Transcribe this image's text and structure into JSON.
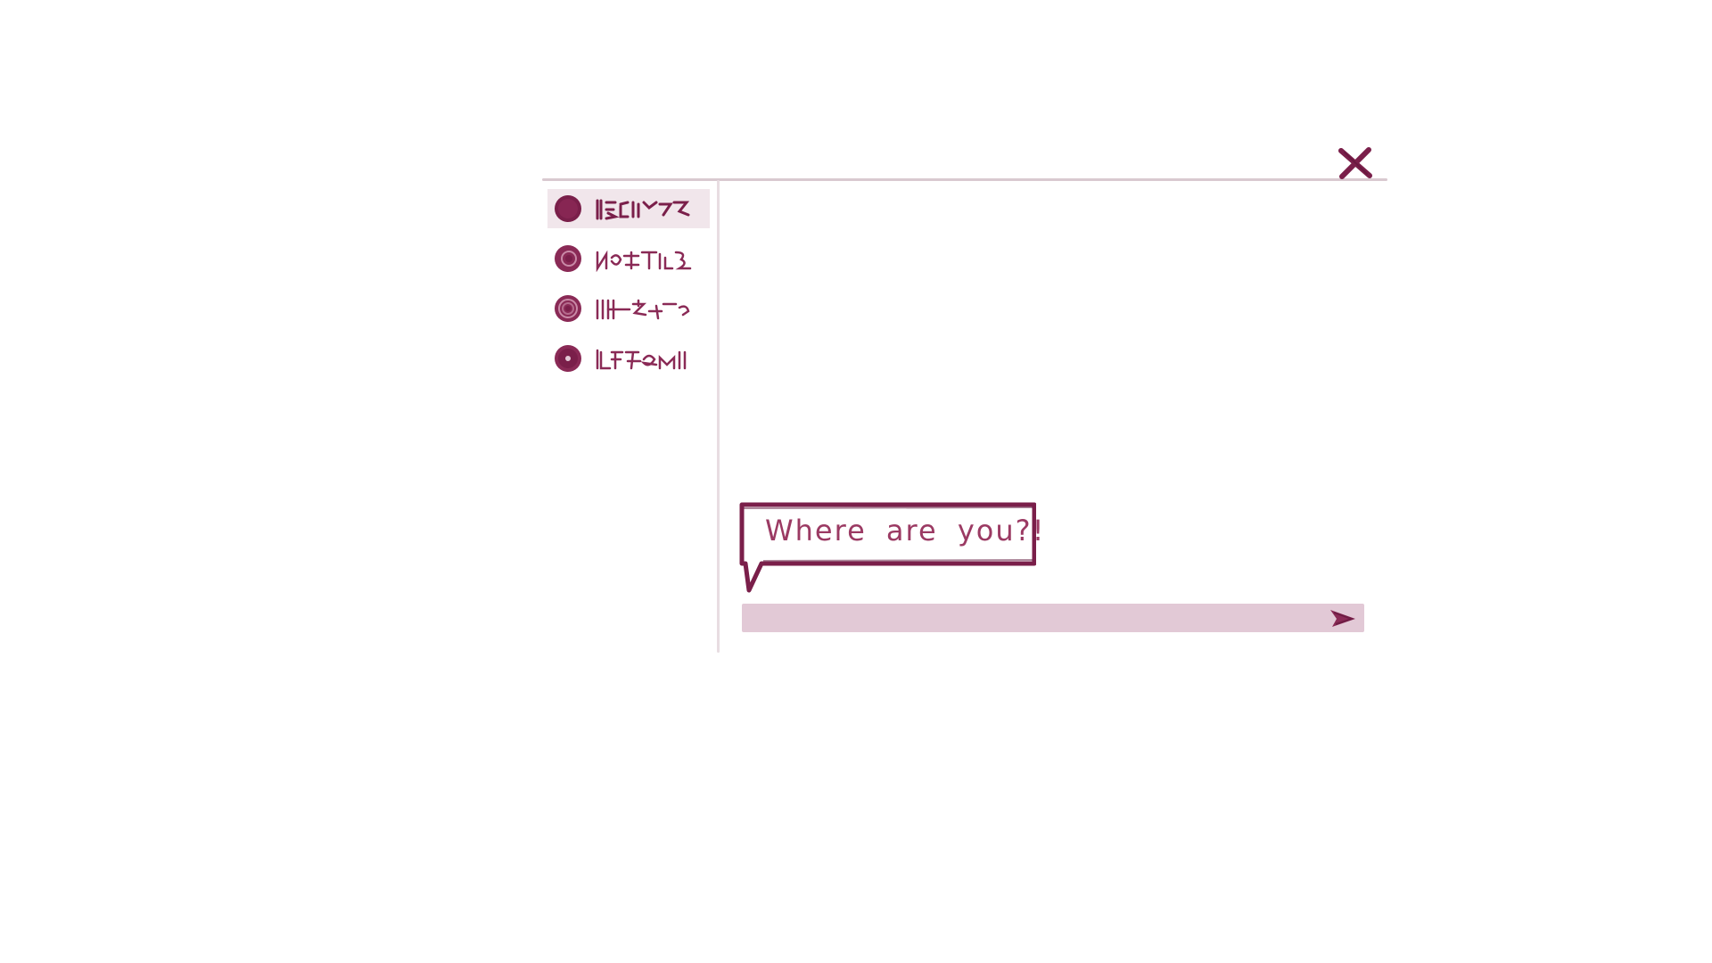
{
  "window": {
    "close_icon": "close-icon"
  },
  "sidebar": {
    "items": [
      {
        "label": "",
        "icon": "filled-dot-icon",
        "active": true
      },
      {
        "label": "",
        "icon": "ring-dot-icon",
        "active": false
      },
      {
        "label": "",
        "icon": "ring-dot-icon",
        "active": false
      },
      {
        "label": "",
        "icon": "center-dot-icon",
        "active": false
      }
    ]
  },
  "chat": {
    "message": "Where are you?!"
  },
  "composer": {
    "value": "",
    "placeholder": "",
    "send_icon": "send-arrow-icon"
  },
  "colors": {
    "accent": "#7a1f4a",
    "text": "#9b3a63",
    "composer_bg": "#e2c9d6",
    "active_bg": "#f1e6eb"
  }
}
